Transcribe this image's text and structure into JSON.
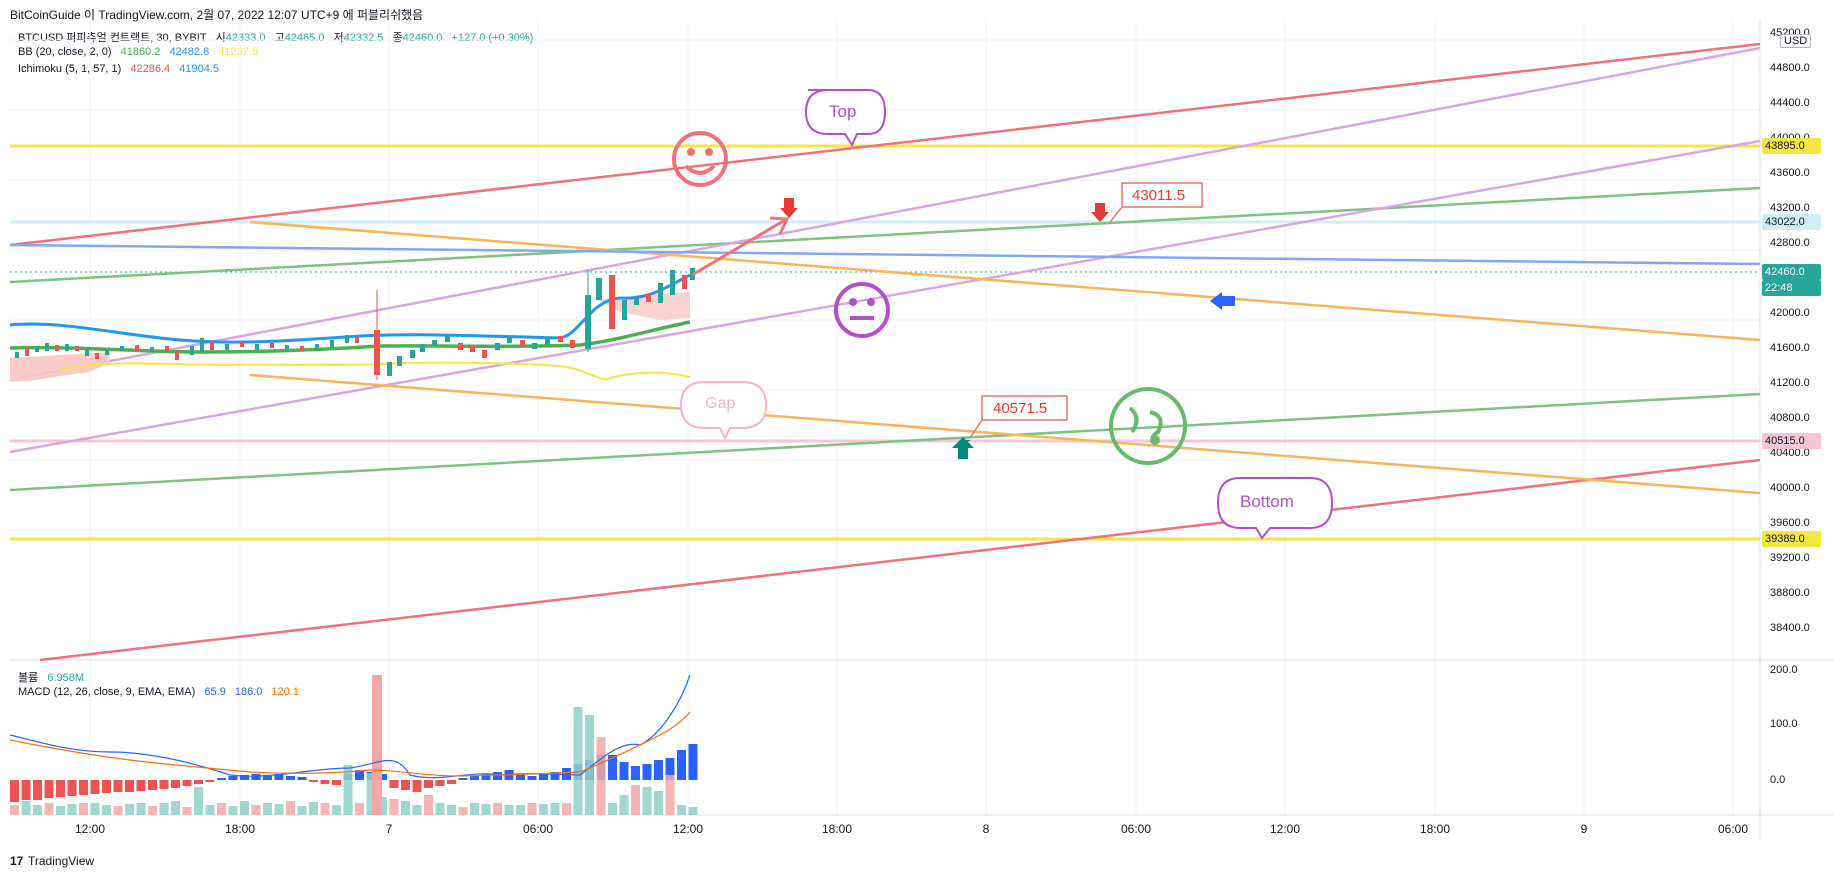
{
  "header": {
    "publish_line": "BitCoinGuide 이 TradingView.com, 2월 07, 2022 12:07 UTC+9 에 퍼블리쉬했음"
  },
  "symbol_line": {
    "symbol": "BTCUSD 퍼피츄얼 컨트랙트, 30, BYBIT",
    "open_label": "시",
    "open": "42333.0",
    "high_label": "고",
    "high": "42465.0",
    "low_label": "저",
    "low": "42332.5",
    "close_label": "종",
    "close": "42460.0",
    "change": "+127.0 (+0.30%)"
  },
  "bb_line": {
    "label": "BB (20, close, 2, 0)",
    "v1": "41860.2",
    "v2": "42482.8",
    "v3": "41237.5"
  },
  "ichimoku_line": {
    "label": "Ichimoku (5, 1, 57, 1)",
    "v1": "42286.4",
    "v2": "41904.5"
  },
  "volume_line": {
    "label": "볼륨",
    "value": "6.958M"
  },
  "macd_line": {
    "label": "MACD (12, 26, close, 9, EMA, EMA)",
    "v1": "65.9",
    "v2": "186.0",
    "v3": "120.1"
  },
  "price_axis": {
    "currency": "USD",
    "ticks": [
      "45200.0",
      "44800.0",
      "44400.0",
      "44000.0",
      "43600.0",
      "43200.0",
      "42800.0",
      "42400.0",
      "42000.0",
      "41600.0",
      "41200.0",
      "40800.0",
      "40400.0",
      "40000.0",
      "39600.0",
      "39200.0",
      "38800.0",
      "38400.0"
    ],
    "tags": {
      "t43895": "43895.0",
      "t43022": "43022.0",
      "t42460": "42460.0",
      "t_countdown": "22:48",
      "t40515": "40515.0",
      "t39389": "39389.0"
    }
  },
  "macd_axis": {
    "ticks": [
      "200.0",
      "100.0",
      "0.0"
    ]
  },
  "time_axis": {
    "labels": [
      "12:00",
      "18:00",
      "7",
      "06:00",
      "12:00",
      "18:00",
      "8",
      "06:00",
      "12:00",
      "18:00",
      "9",
      "06:00"
    ]
  },
  "annotations": {
    "top_bubble": "Top",
    "bottom_bubble": "Bottom",
    "gap_bubble": "Gap",
    "price_callout_1": "43011.5",
    "price_callout_2": "40571.5"
  },
  "colors": {
    "up": "#26a69a",
    "down": "#ef5350",
    "red_line": "#f07178",
    "green_line": "#7cc47f",
    "violet_line": "#d8a6e6",
    "orange_line": "#f9b458",
    "blue_line": "#7fa7f5",
    "yellow_line": "#f5e642"
  },
  "footer": {
    "brand": "TradingView"
  }
}
